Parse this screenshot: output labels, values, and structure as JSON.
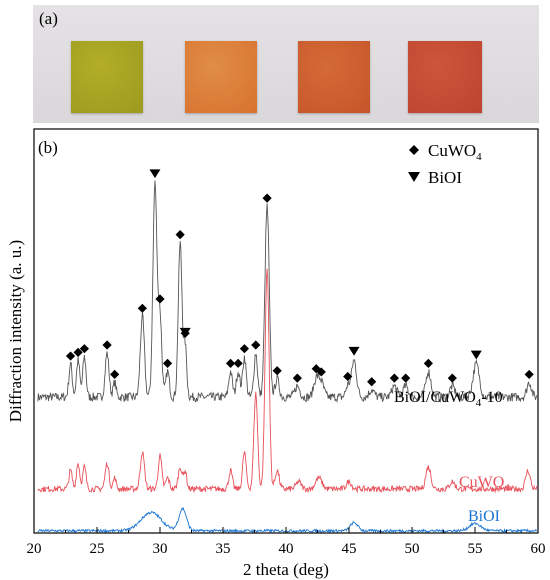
{
  "photo_panel": {
    "label": "(a)",
    "samples": [
      {
        "color": "#b2ae28",
        "shade": "#9c9a1f"
      },
      {
        "color": "#e08d45",
        "shade": "#d7722f"
      },
      {
        "color": "#d46a37",
        "shade": "#c65529"
      },
      {
        "color": "#cd553a",
        "shade": "#bd4530"
      }
    ]
  },
  "chart_data": {
    "type": "line",
    "panel_label": "(b)",
    "xlabel": "2 theta (deg)",
    "ylabel": "Diffraction intensity (a. u.)",
    "xlim": [
      20,
      60
    ],
    "xticks": [
      20,
      25,
      30,
      35,
      40,
      45,
      50,
      55,
      60
    ],
    "grid": false,
    "legend": {
      "placement": "top-right",
      "entries": [
        {
          "marker": "diamond",
          "label": "CuWO",
          "subscript": "4"
        },
        {
          "marker": "triangle-down",
          "label": "BiOI",
          "subscript": ""
        }
      ]
    },
    "series": [
      {
        "name": "BiOI/CuWO",
        "name_sub": "4",
        "name_suffix": "-10",
        "color": "#555555",
        "baseline": 37,
        "noise": 1.2,
        "peaks": [
          [
            22.9,
            9,
            0.13
          ],
          [
            23.5,
            10,
            0.13
          ],
          [
            24.0,
            11,
            0.13
          ],
          [
            25.8,
            12,
            0.15
          ],
          [
            26.4,
            4,
            0.12
          ],
          [
            28.6,
            22,
            0.16
          ],
          [
            29.6,
            58,
            0.16
          ],
          [
            30.0,
            22,
            0.14
          ],
          [
            30.6,
            7,
            0.14
          ],
          [
            31.6,
            42,
            0.15
          ],
          [
            32.0,
            14,
            0.12
          ],
          [
            35.6,
            7,
            0.14
          ],
          [
            36.2,
            7,
            0.14
          ],
          [
            36.7,
            11,
            0.14
          ],
          [
            37.6,
            12,
            0.14
          ],
          [
            38.5,
            52,
            0.17
          ],
          [
            39.3,
            5,
            0.16
          ],
          [
            40.9,
            3,
            0.2
          ],
          [
            42.4,
            5,
            0.2
          ],
          [
            42.8,
            4,
            0.2
          ],
          [
            44.9,
            3,
            0.16
          ],
          [
            45.4,
            10,
            0.2
          ],
          [
            46.8,
            2,
            0.2
          ],
          [
            48.6,
            3,
            0.2
          ],
          [
            49.5,
            3,
            0.2
          ],
          [
            51.3,
            7,
            0.2
          ],
          [
            53.2,
            3,
            0.2
          ],
          [
            55.1,
            9,
            0.25
          ],
          [
            59.3,
            4,
            0.18
          ]
        ]
      },
      {
        "name": "CuWO",
        "name_sub": "4",
        "name_suffix": "",
        "color": "#e8505a",
        "baseline": 12,
        "noise": 0.8,
        "peaks": [
          [
            22.9,
            5,
            0.13
          ],
          [
            23.5,
            7,
            0.13
          ],
          [
            24.0,
            6,
            0.13
          ],
          [
            25.8,
            7,
            0.15
          ],
          [
            26.4,
            3,
            0.12
          ],
          [
            28.6,
            10,
            0.16
          ],
          [
            30.0,
            9,
            0.14
          ],
          [
            30.6,
            3,
            0.14
          ],
          [
            31.6,
            6,
            0.15
          ],
          [
            32.0,
            5,
            0.12
          ],
          [
            35.6,
            5,
            0.14
          ],
          [
            36.7,
            10,
            0.14
          ],
          [
            37.6,
            26,
            0.15
          ],
          [
            38.5,
            60,
            0.16
          ],
          [
            39.3,
            5,
            0.16
          ],
          [
            41.0,
            2,
            0.2
          ],
          [
            42.6,
            3,
            0.25
          ],
          [
            45.0,
            2,
            0.2
          ],
          [
            51.3,
            6,
            0.2
          ],
          [
            53.2,
            2,
            0.2
          ],
          [
            59.2,
            5,
            0.18
          ]
        ]
      },
      {
        "name": "BiOI",
        "name_sub": "",
        "name_suffix": "",
        "color": "#1a75d1",
        "baseline": 0.6,
        "noise": 0.35,
        "peaks": [
          [
            29.3,
            5,
            0.8
          ],
          [
            31.8,
            6,
            0.3
          ],
          [
            45.4,
            2.2,
            0.3
          ],
          [
            55.0,
            2,
            0.45
          ]
        ]
      }
    ],
    "diamond_markers": [
      22.9,
      23.5,
      24.0,
      25.8,
      26.4,
      28.6,
      30.0,
      30.6,
      31.6,
      32.0,
      35.6,
      36.2,
      36.7,
      37.6,
      38.5,
      39.3,
      40.9,
      42.4,
      42.8,
      44.9,
      46.8,
      48.6,
      49.5,
      51.3,
      53.2,
      59.3
    ],
    "triangle_markers": [
      29.6,
      32.0,
      45.4,
      55.1
    ]
  }
}
